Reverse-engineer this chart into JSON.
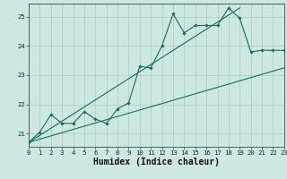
{
  "title": "",
  "xlabel": "Humidex (Indice chaleur)",
  "background_color": "#cce8e0",
  "grid_color": "#aaccc4",
  "line_color": "#1a6b5a",
  "x_data": [
    0,
    1,
    2,
    3,
    4,
    5,
    6,
    7,
    8,
    9,
    10,
    11,
    12,
    13,
    14,
    15,
    16,
    17,
    18,
    19,
    20,
    21,
    22,
    23
  ],
  "series1": [
    20.7,
    21.05,
    21.65,
    21.35,
    21.35,
    21.75,
    21.5,
    21.35,
    21.85,
    22.05,
    23.3,
    23.25,
    24.0,
    25.1,
    24.45,
    24.7,
    24.7,
    24.7,
    25.3,
    24.95,
    23.8,
    23.85,
    23.85,
    23.85
  ],
  "line2_x": [
    0,
    23
  ],
  "line2_y": [
    20.7,
    23.25
  ],
  "line3_x": [
    0,
    19
  ],
  "line3_y": [
    20.7,
    25.3
  ],
  "xlim": [
    0,
    23
  ],
  "ylim": [
    20.55,
    25.45
  ],
  "yticks": [
    21,
    22,
    23,
    24,
    25
  ],
  "xticks": [
    0,
    1,
    2,
    3,
    4,
    5,
    6,
    7,
    8,
    9,
    10,
    11,
    12,
    13,
    14,
    15,
    16,
    17,
    18,
    19,
    20,
    21,
    22,
    23
  ],
  "tick_fontsize": 5.2,
  "xlabel_fontsize": 7.0
}
